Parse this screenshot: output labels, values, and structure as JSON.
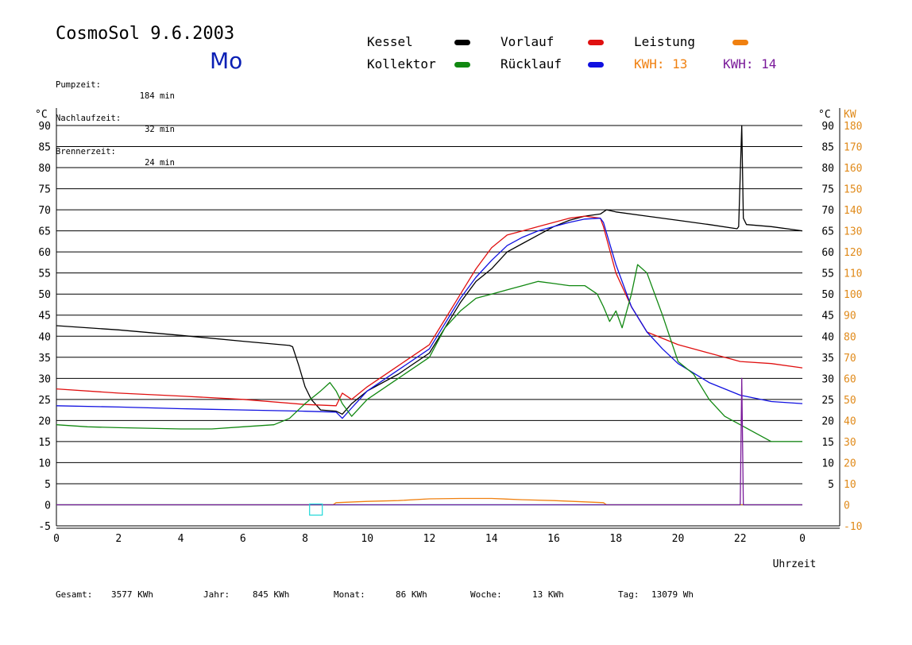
{
  "header": {
    "title": "CosmoSol 9.6.2003",
    "day": "Mo",
    "stats": [
      {
        "label": "Pumpzeit:",
        "value": "184 min"
      },
      {
        "label": "Nachlaufzeit:",
        "value": "32 min"
      },
      {
        "label": "Brennerzeit:",
        "value": "24 min"
      }
    ]
  },
  "legend": {
    "kessel": {
      "label": "Kessel",
      "color": "#000000"
    },
    "vorlauf": {
      "label": "Vorlauf",
      "color": "#e01010"
    },
    "leistung": {
      "label": "Leistung",
      "color": "#f08010"
    },
    "kollektor": {
      "label": "Kollektor",
      "color": "#118811"
    },
    "ruecklauf": {
      "label": "Rücklauf",
      "color": "#1010e0"
    },
    "kwh_orange": "KWH: 13",
    "kwh_purple": "KWH: 14",
    "kwh_orange_color": "#f08010",
    "kwh_purple_color": "#7a1a9a"
  },
  "footer": [
    {
      "label": "Gesamt:",
      "value": "3577 KWh"
    },
    {
      "label": "Jahr:",
      "value": "845 KWh"
    },
    {
      "label": "Monat:",
      "value": "86 KWh"
    },
    {
      "label": "Woche:",
      "value": "13 KWh"
    },
    {
      "label": "Tag:",
      "value": "13079 Wh"
    }
  ],
  "chart_data": {
    "type": "line",
    "xlabel": "Uhrzeit",
    "ylabel_left": "°C",
    "ylabel_right_temp": "°C",
    "ylabel_right_power": "KW",
    "xlim": [
      0,
      24
    ],
    "ylim": [
      -5,
      90
    ],
    "x_ticks": [
      "0",
      "2",
      "4",
      "6",
      "8",
      "10",
      "12",
      "14",
      "16",
      "18",
      "20",
      "22",
      "0"
    ],
    "y_ticks_left": [
      "-5",
      "0",
      "5",
      "10",
      "15",
      "20",
      "25",
      "30",
      "35",
      "40",
      "45",
      "50",
      "55",
      "60",
      "65",
      "70",
      "75",
      "80",
      "85",
      "90"
    ],
    "y_ticks_right_temp": [
      "5",
      "10",
      "15",
      "20",
      "25",
      "30",
      "35",
      "40",
      "45",
      "50",
      "55",
      "60",
      "65",
      "70",
      "75",
      "80",
      "85",
      "90"
    ],
    "y_ticks_right_kw": [
      "-10",
      "0",
      "10",
      "20",
      "30",
      "40",
      "50",
      "60",
      "70",
      "80",
      "90",
      "100",
      "110",
      "120",
      "130",
      "140",
      "150",
      "160",
      "170",
      "180"
    ],
    "grid": true,
    "marker_box": {
      "x": 8.35,
      "y": 0
    },
    "series": [
      {
        "name": "Kessel",
        "color": "#000000",
        "x": [
          0,
          2,
          4,
          6,
          7.5,
          7.6,
          7.8,
          8.0,
          8.2,
          8.5,
          9.0,
          9.2,
          9.5,
          10.0,
          11.0,
          12.0,
          12.5,
          13.0,
          13.5,
          14.0,
          14.5,
          15.0,
          15.5,
          16.0,
          16.5,
          17.0,
          17.5,
          17.7,
          18.0,
          19.0,
          20.0,
          21.0,
          21.9,
          21.95,
          22.05,
          22.1,
          22.2,
          23.0,
          24.0
        ],
        "y": [
          42.5,
          41.5,
          40.2,
          38.8,
          37.8,
          37.5,
          33,
          28,
          25,
          22.5,
          22.2,
          21.5,
          24,
          27,
          31,
          36,
          42,
          48,
          53,
          56,
          60,
          62,
          64,
          66,
          67.5,
          68.5,
          69,
          70,
          69.5,
          68.5,
          67.5,
          66.5,
          65.5,
          66,
          90,
          68,
          66.5,
          66,
          65
        ]
      },
      {
        "name": "Vorlauf",
        "color": "#e01010",
        "x": [
          0,
          2,
          4,
          6,
          8,
          9.0,
          9.2,
          9.5,
          10.0,
          11.0,
          12.0,
          12.5,
          13.0,
          13.5,
          14.0,
          14.5,
          15.0,
          15.5,
          16.0,
          16.5,
          17.0,
          17.5,
          17.6,
          18.0,
          18.5,
          19.0,
          20.0,
          21.0,
          22.0,
          23.0,
          24.0
        ],
        "y": [
          27.5,
          26.5,
          25.8,
          25,
          23.8,
          23.5,
          26.5,
          25,
          28,
          33,
          38,
          44,
          50,
          56,
          61,
          64,
          65,
          66,
          67,
          68,
          68.5,
          68,
          66,
          55,
          47,
          41,
          38,
          36,
          34,
          33.5,
          32.5
        ]
      },
      {
        "name": "Rücklauf",
        "color": "#1010e0",
        "x": [
          0,
          2,
          4,
          6,
          8,
          9.0,
          9.2,
          9.5,
          10.0,
          11.0,
          12.0,
          12.5,
          13.0,
          13.5,
          14.0,
          14.5,
          15.0,
          15.5,
          16.0,
          16.5,
          17.0,
          17.5,
          17.6,
          18.0,
          18.5,
          19.0,
          19.5,
          20.0,
          21.0,
          22.0,
          23.0,
          24.0
        ],
        "y": [
          23.5,
          23.2,
          22.8,
          22.5,
          22.2,
          22,
          20.5,
          23,
          27,
          32,
          37,
          43,
          49,
          54,
          58,
          61.5,
          63.5,
          65,
          66,
          67,
          67.8,
          68,
          67,
          57,
          47,
          41,
          37,
          33.5,
          29,
          26,
          24.5,
          24
        ]
      },
      {
        "name": "Kollektor",
        "color": "#118811",
        "x": [
          0,
          1,
          2,
          4,
          5,
          6,
          7,
          7.5,
          8.0,
          8.5,
          8.8,
          9.0,
          9.2,
          9.5,
          10.0,
          11.0,
          12.0,
          12.5,
          13.0,
          13.5,
          14.0,
          14.5,
          15.0,
          15.5,
          16.0,
          16.5,
          17.0,
          17.4,
          17.6,
          17.8,
          18.0,
          18.2,
          18.5,
          18.7,
          19.0,
          19.5,
          20.0,
          20.5,
          21.0,
          21.5,
          22.0,
          22.5,
          23.0,
          24.0
        ],
        "y": [
          19,
          18.5,
          18.3,
          18,
          18,
          18.5,
          19,
          20.5,
          24,
          27,
          29,
          27,
          24,
          21,
          25,
          30,
          35,
          42,
          46,
          49,
          50,
          51,
          52,
          53,
          52.5,
          52,
          52,
          50,
          47,
          43.5,
          46,
          42,
          50,
          57,
          55,
          45,
          34,
          31,
          25,
          21,
          19,
          17,
          15,
          15
        ]
      },
      {
        "name": "Leistung",
        "color": "#f08010",
        "x": [
          0,
          8.9,
          9.0,
          10.0,
          11.0,
          12.0,
          13.0,
          14.0,
          15.0,
          16.0,
          17.0,
          17.6,
          17.7,
          24
        ],
        "y": [
          0,
          0,
          0.5,
          0.8,
          1.0,
          1.4,
          1.5,
          1.5,
          1.2,
          1.0,
          0.7,
          0.5,
          0,
          0
        ]
      },
      {
        "name": "Leistung (Spitze)",
        "color": "#7a1a9a",
        "x": [
          0,
          21.9,
          22.0,
          22.05,
          22.1,
          22.2,
          24
        ],
        "y": [
          0,
          0,
          0,
          30,
          0,
          0,
          0
        ]
      }
    ]
  }
}
